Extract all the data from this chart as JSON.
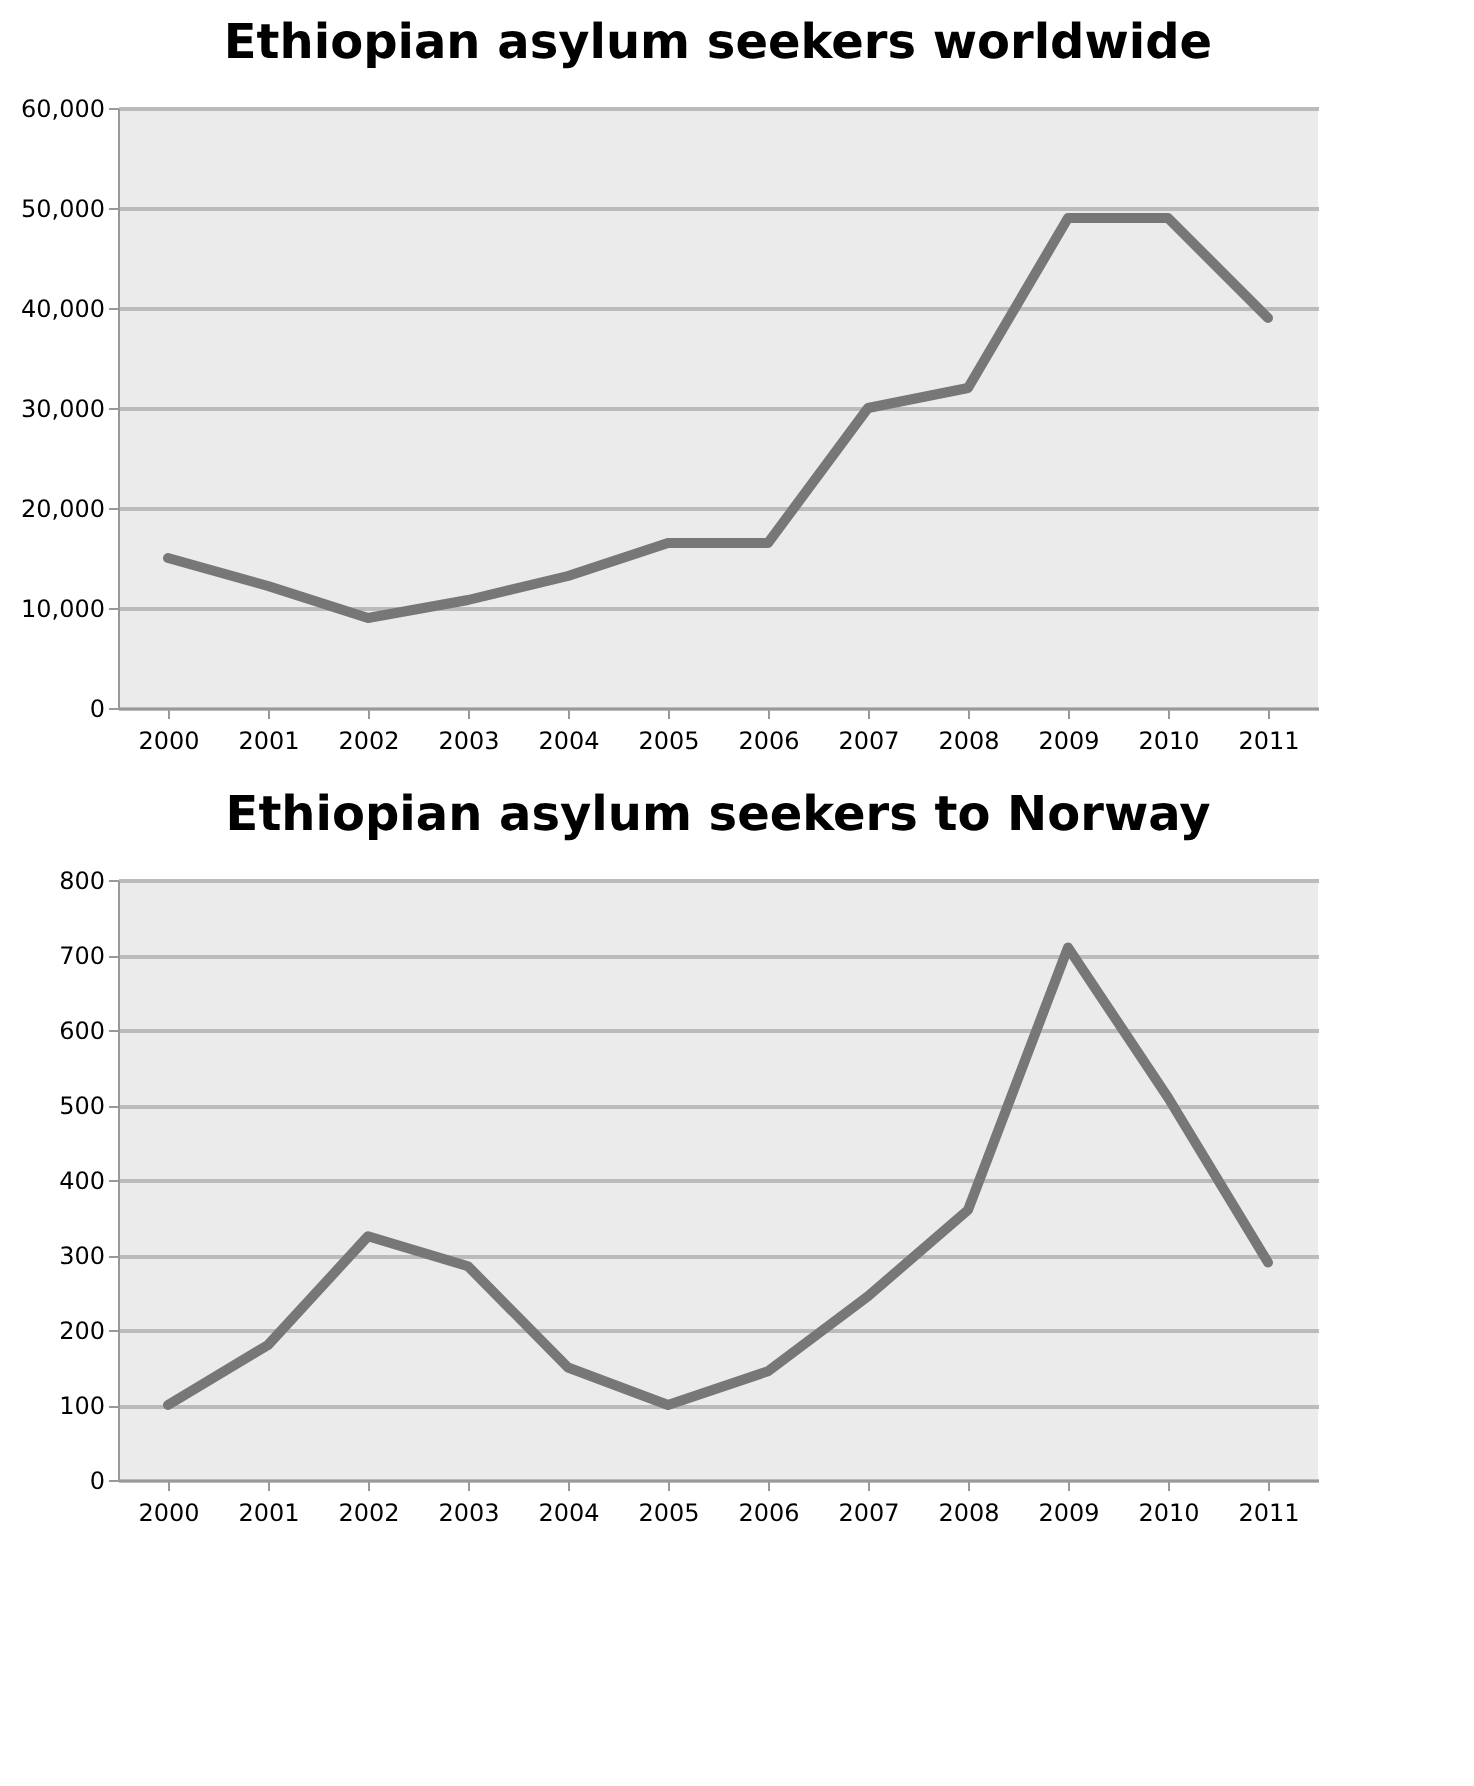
{
  "chart_data": [
    {
      "type": "line",
      "title": "Ethiopian asylum seekers worldwide",
      "categories": [
        "2000",
        "2001",
        "2002",
        "2003",
        "2004",
        "2005",
        "2006",
        "2007",
        "2008",
        "2009",
        "2010",
        "2011"
      ],
      "series": [
        {
          "color": "#777777",
          "values": [
            15000,
            12200,
            9000,
            10800,
            13200,
            16500,
            16500,
            30000,
            32000,
            49000,
            49000,
            39000
          ]
        }
      ],
      "ylim": [
        0,
        60000
      ],
      "yticks": [
        {
          "value": 0,
          "label": "0"
        },
        {
          "value": 10000,
          "label": "10,000"
        },
        {
          "value": 20000,
          "label": "20,000"
        },
        {
          "value": 30000,
          "label": "30,000"
        },
        {
          "value": 40000,
          "label": "40,000"
        },
        {
          "value": 50000,
          "label": "50,000"
        },
        {
          "value": 60000,
          "label": "60,000"
        }
      ],
      "grid": "y",
      "marker": "none",
      "line_style": "solid"
    },
    {
      "type": "line",
      "title": "Ethiopian asylum seekers to Norway",
      "categories": [
        "2000",
        "2001",
        "2002",
        "2003",
        "2004",
        "2005",
        "2006",
        "2007",
        "2008",
        "2009",
        "2010",
        "2011"
      ],
      "series": [
        {
          "color": "#777777",
          "values": [
            100,
            180,
            325,
            285,
            150,
            100,
            145,
            245,
            360,
            710,
            510,
            290
          ]
        }
      ],
      "ylim": [
        0,
        800
      ],
      "yticks": [
        0,
        100,
        200,
        300,
        400,
        500,
        600,
        700,
        800
      ],
      "grid": "y",
      "marker": "none",
      "line_style": "solid"
    }
  ]
}
